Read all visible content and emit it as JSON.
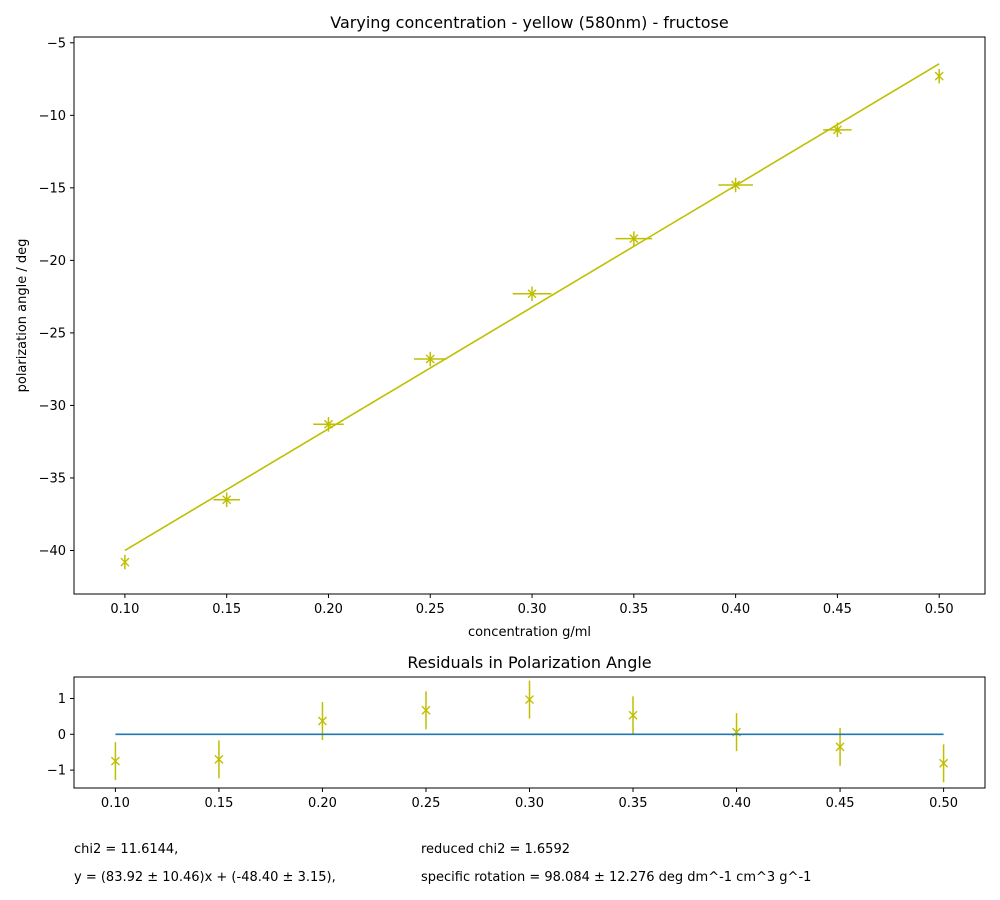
{
  "chart_data": [
    {
      "type": "scatter",
      "title": "Varying concentration - yellow (580nm) - fructose",
      "xlabel": "concentration g/ml",
      "ylabel": "polarization angle / deg",
      "xlim": [
        0.075,
        0.5225
      ],
      "ylim": [
        -43.0,
        -4.6
      ],
      "xticks": [
        "0.10",
        "0.15",
        "0.20",
        "0.25",
        "0.30",
        "0.35",
        "0.40",
        "0.45",
        "0.50"
      ],
      "yticks": [
        "-40",
        "-35",
        "-30",
        "-25",
        "-20",
        "-15",
        "-10",
        "-5"
      ],
      "grid": false,
      "series": [
        {
          "kind": "errorbar",
          "color": "#bfbf00",
          "marker": "x",
          "x": [
            0.1,
            0.15,
            0.2,
            0.25,
            0.3,
            0.35,
            0.4,
            0.45,
            0.5
          ],
          "y": [
            -40.8,
            -36.5,
            -31.3,
            -26.8,
            -22.3,
            -18.5,
            -14.8,
            -11.0,
            -7.3
          ],
          "xerr": [
            0.0,
            0.0065,
            0.0075,
            0.008,
            0.0095,
            0.009,
            0.0085,
            0.007,
            0.0
          ],
          "yerr": [
            0.5,
            0.5,
            0.5,
            0.5,
            0.5,
            0.5,
            0.5,
            0.5,
            0.5
          ]
        },
        {
          "kind": "line",
          "color": "#bfbf00",
          "x": [
            0.1,
            0.5
          ],
          "y": [
            -40.0,
            -6.45
          ]
        }
      ]
    },
    {
      "type": "scatter",
      "title": "Residuals in Polarization Angle",
      "xlim": [
        0.08,
        0.52
      ],
      "ylim": [
        -1.5,
        1.6
      ],
      "xticks": [
        "0.10",
        "0.15",
        "0.20",
        "0.25",
        "0.30",
        "0.35",
        "0.40",
        "0.45",
        "0.50"
      ],
      "yticks": [
        "-1",
        "0",
        "1"
      ],
      "grid": false,
      "series": [
        {
          "kind": "errorbar",
          "color": "#bfbf00",
          "marker": "x",
          "x": [
            0.1,
            0.15,
            0.2,
            0.25,
            0.3,
            0.35,
            0.4,
            0.45,
            0.5
          ],
          "y": [
            -0.75,
            -0.7,
            0.37,
            0.67,
            0.97,
            0.53,
            0.06,
            -0.35,
            -0.81
          ],
          "yerr": [
            0.53,
            0.53,
            0.53,
            0.53,
            0.53,
            0.53,
            0.53,
            0.53,
            0.53
          ]
        },
        {
          "kind": "line",
          "color": "#1f77b4",
          "x": [
            0.1,
            0.5
          ],
          "y": [
            0,
            0
          ]
        }
      ]
    }
  ],
  "stats": {
    "chi2": "chi2 = 11.6144,",
    "reduced_chi2": "reduced chi2 = 1.6592",
    "fit": "y = (83.92 ± 10.46)x + (-48.40 ± 3.15),",
    "specific_rotation": "specific rotation = 98.084 ± 12.276 deg dm^-1 cm^3 g^-1"
  }
}
